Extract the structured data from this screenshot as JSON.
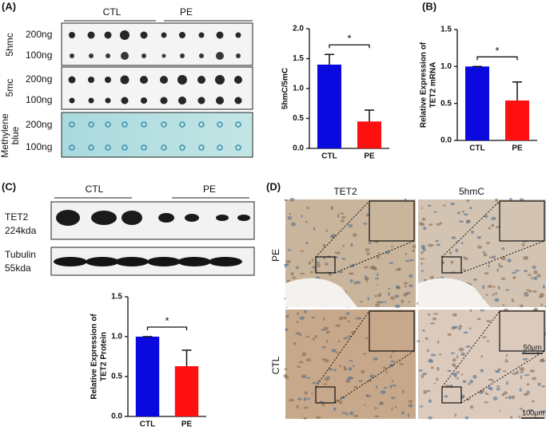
{
  "labels": {
    "panel_a": "(A)",
    "panel_b": "(B)",
    "panel_c": "(C)",
    "panel_d": "(D)"
  },
  "blot_a": {
    "groups": [
      "CTL",
      "PE"
    ],
    "rows": [
      {
        "label": [
          "5hmc"
        ],
        "amounts": [
          "200ng",
          "100ng"
        ]
      },
      {
        "label": [
          "5mc"
        ],
        "amounts": [
          "200ng",
          "100ng"
        ]
      },
      {
        "label": [
          "Methylene",
          "blue"
        ],
        "amounts": [
          "200ng",
          "100ng"
        ]
      }
    ]
  },
  "blot_c": {
    "groups": [
      "CTL",
      "PE"
    ],
    "rows": [
      [
        "TET2",
        "224kda"
      ],
      [
        "Tubulin",
        "55kda"
      ]
    ]
  },
  "histology": {
    "columns": [
      "TET2",
      "5hmC"
    ],
    "rows": [
      "PE",
      "CTL"
    ],
    "scale_bars": [
      "50μm",
      "100μm"
    ]
  },
  "chart_data": [
    {
      "type": "bar",
      "ylabel": [
        "5hmC/5mC"
      ],
      "categories": [
        "CTL",
        "PE"
      ],
      "values": [
        1.4,
        0.45
      ],
      "errors": [
        0.17,
        0.19
      ],
      "colors": [
        "#0a0ae0",
        "#ff1010"
      ],
      "ylim": [
        0,
        2
      ],
      "yticks": [
        {
          "value": 0,
          "label": "0.0"
        },
        0.5,
        {
          "value": 1,
          "label": "1.0"
        },
        1.5,
        {
          "value": 2,
          "label": "2.0"
        }
      ],
      "annotation": "*"
    },
    {
      "type": "bar",
      "ylabel": [
        "Relative Expression of",
        "TET2 mRNA"
      ],
      "categories": [
        "CTL",
        "PE"
      ],
      "values": [
        1.0,
        0.54
      ],
      "errors": [
        0,
        0.25
      ],
      "colors": [
        "#0a0ae0",
        "#ff1010"
      ],
      "ylim": [
        0,
        1.5
      ],
      "yticks": [
        {
          "value": 0,
          "label": "0.0"
        },
        0.5,
        {
          "value": 1,
          "label": "1.0"
        },
        1.5
      ],
      "annotation": "*"
    },
    {
      "type": "bar",
      "ylabel": [
        "Relative Expression of",
        "TET2 Protein"
      ],
      "categories": [
        "CTL",
        "PE"
      ],
      "values": [
        1.0,
        0.63
      ],
      "errors": [
        0,
        0.2
      ],
      "colors": [
        "#0a0ae0",
        "#ff1010"
      ],
      "ylim": [
        0,
        1.5
      ],
      "yticks": [
        {
          "value": 0,
          "label": "0.0"
        },
        0.5,
        {
          "value": 1,
          "label": "1.0"
        },
        1.5
      ],
      "annotation": "*"
    }
  ]
}
